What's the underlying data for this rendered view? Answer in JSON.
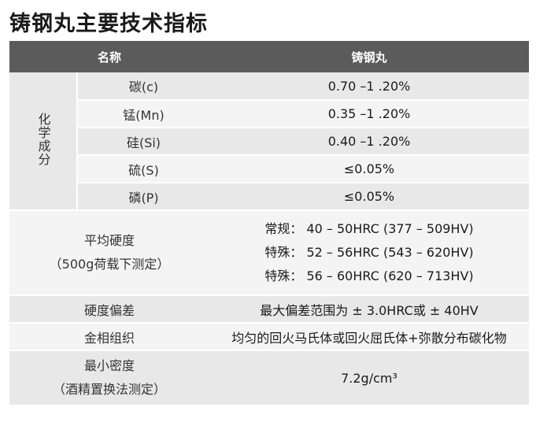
{
  "title": "铸钢丸主要技术指标",
  "table": {
    "headers": [
      "名称",
      "铸钢丸"
    ],
    "chemical": {
      "group_label": "化学成分",
      "rows": [
        {
          "name": "碳(c)",
          "value": "0.70 –1 .20%"
        },
        {
          "name": "锰(Mn)",
          "value": "0.35 –1 .20%"
        },
        {
          "name": "硅(Si)",
          "value": "0.40 –1 .20%"
        },
        {
          "name": "硫(S)",
          "value": "≤0.05%"
        },
        {
          "name": "磷(P)",
          "value": "≤0.05%"
        }
      ]
    },
    "hardness": {
      "label_line1": "平均硬度",
      "label_line2": "（500g荷载下测定）",
      "values": [
        "常规： 40 – 50HRC (377 – 509HV)",
        "特殊： 52 – 56HRC (543 – 620HV)",
        "特殊： 56 – 60HRC (620 – 713HV)"
      ]
    },
    "deviation": {
      "label": "硬度偏差",
      "value": "最大偏差范围为 ± 3.0HRC或 ± 40HV"
    },
    "microstructure": {
      "label": "金相组织",
      "value": "均匀的回火马氏体或回火屈氏体+弥散分布碳化物"
    },
    "density": {
      "label_line1": "最小密度",
      "label_line2": "（酒精置换法测定）",
      "value": "7.2g/cm³"
    }
  },
  "colors": {
    "header_bg": "#5b5b5b",
    "row_dark": "#e8e8e8",
    "row_light": "#f4f4f4"
  }
}
